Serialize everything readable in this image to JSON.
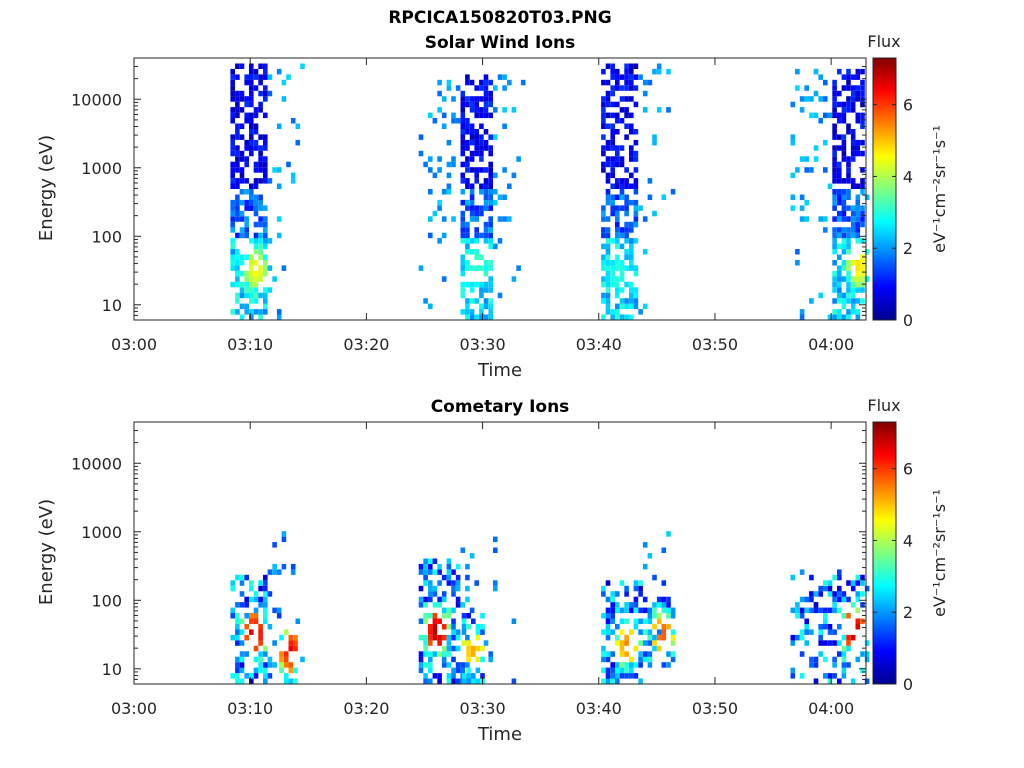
{
  "figure_title": "RPCICA150820T03.PNG",
  "chart_data": [
    {
      "type": "heatmap",
      "title": "Solar Wind Ions",
      "xlabel": "Time",
      "ylabel": "Energy (eV)",
      "x_ticks": [
        "03:00",
        "03:10",
        "03:20",
        "03:30",
        "03:40",
        "03:50",
        "04:00"
      ],
      "x_range_minutes": [
        0,
        63
      ],
      "y_ticks": [
        "10",
        "100",
        "1000",
        "10000"
      ],
      "y_scale": "log",
      "y_range": [
        6,
        40000
      ],
      "colorbar": {
        "title": "Flux",
        "label": "eV⁻¹cm⁻²sr⁻¹s⁻¹",
        "ticks": [
          "0",
          "2",
          "4",
          "6"
        ],
        "range": [
          0,
          7.3
        ],
        "colormap": "jet"
      },
      "bursts": [
        {
          "t_start": 8.3,
          "t_end": 11.3,
          "e_min": 6,
          "e_max": 35000,
          "fill": 0.62,
          "sparse_until": 15.0,
          "hot": {
            "t": 10.3,
            "e": 32,
            "value": 4.6
          }
        },
        {
          "t_start": 27.9,
          "t_end": 30.8,
          "e_min": 6,
          "e_max": 25000,
          "fill": 0.62,
          "pre_from": 24.5,
          "sparse_until": 34.0,
          "hot": {
            "t": 29.5,
            "e": 45,
            "value": 3.2
          }
        },
        {
          "t_start": 40.2,
          "t_end": 43.0,
          "e_min": 6,
          "e_max": 33000,
          "fill": 0.62,
          "sparse_until": 47.0,
          "hot": {
            "t": 41.5,
            "e": 28,
            "value": 3.0
          }
        },
        {
          "t_start": 59.8,
          "t_end": 62.6,
          "e_min": 6,
          "e_max": 30000,
          "fill": 0.62,
          "pre_from": 56.5,
          "sparse_until": 63.0,
          "hot": {
            "t": 62.2,
            "e": 38,
            "value": 4.8
          }
        }
      ]
    },
    {
      "type": "heatmap",
      "title": "Cometary Ions",
      "xlabel": "Time",
      "ylabel": "Energy (eV)",
      "x_ticks": [
        "03:00",
        "03:10",
        "03:20",
        "03:30",
        "03:40",
        "03:50",
        "04:00"
      ],
      "x_range_minutes": [
        0,
        63
      ],
      "y_ticks": [
        "10",
        "100",
        "1000",
        "10000"
      ],
      "y_scale": "log",
      "y_range": [
        6,
        40000
      ],
      "colorbar": {
        "title": "Flux",
        "label": "eV⁻¹cm⁻²sr⁻¹s⁻¹",
        "ticks": [
          "0",
          "2",
          "4",
          "6"
        ],
        "range": [
          0,
          7.3
        ],
        "colormap": "jet"
      },
      "bursts": [
        {
          "t_start": 8.3,
          "t_end": 11.5,
          "e_min": 6,
          "e_max": 220,
          "fill": 0.5,
          "sparse_until": 15.0,
          "sparse_e_max": 1200,
          "hot": {
            "t": 10.2,
            "e": 32,
            "value": 6.8
          }
        },
        {
          "t_start": 12.5,
          "t_end": 14.0,
          "e_min": 6,
          "e_max": 40,
          "fill": 0.55,
          "hot": {
            "t": 13.3,
            "e": 18,
            "value": 6.5
          }
        },
        {
          "t_start": 24.5,
          "t_end": 28.0,
          "e_min": 6,
          "e_max": 400,
          "fill": 0.55,
          "sparse_until": 34.0,
          "sparse_e_max": 1000,
          "hot": {
            "t": 25.9,
            "e": 35,
            "value": 7.0
          }
        },
        {
          "t_start": 28.2,
          "t_end": 30.0,
          "e_min": 6,
          "e_max": 60,
          "fill": 0.5,
          "hot": {
            "t": 29.0,
            "e": 18,
            "value": 5.2
          }
        },
        {
          "t_start": 40.2,
          "t_end": 43.5,
          "e_min": 6,
          "e_max": 200,
          "fill": 0.5,
          "sparse_until": 46.5,
          "sparse_e_max": 1100,
          "hot": {
            "t": 42.3,
            "e": 22,
            "value": 5.5
          }
        },
        {
          "t_start": 43.8,
          "t_end": 46.5,
          "e_min": 10,
          "e_max": 120,
          "fill": 0.5,
          "hot": {
            "t": 45.3,
            "e": 32,
            "value": 5.8
          }
        },
        {
          "t_start": 56.5,
          "t_end": 62.6,
          "e_min": 6,
          "e_max": 300,
          "fill": 0.35,
          "sparse_until": 63.0,
          "sparse_e_max": 1200,
          "hot": {
            "t": 61.8,
            "e": 36,
            "value": 6.9
          }
        }
      ]
    }
  ]
}
